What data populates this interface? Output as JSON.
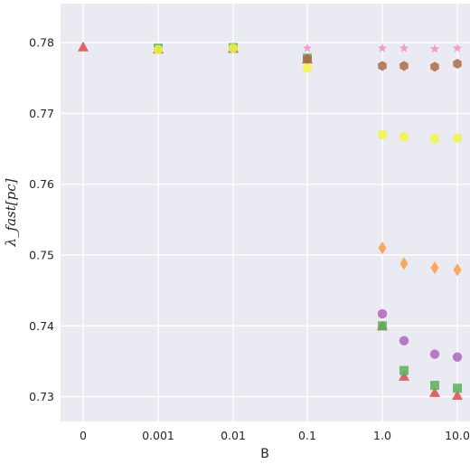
{
  "chart_data": {
    "type": "scatter",
    "title": "",
    "xlabel": "B",
    "ylabel": "λ_fast[pc]",
    "ylim": [
      0.7265,
      0.7855
    ],
    "grid": true,
    "x_scale": "categorical-log",
    "x_ticks": [
      "0",
      "0.001",
      "0.01",
      "0.1",
      "1.0",
      "10.0"
    ],
    "x": [
      "0",
      "0.001",
      "0.01",
      "0.1",
      "1.0",
      "2.0",
      "5.0",
      "10.0"
    ],
    "y_ticks": [
      "0.73",
      "0.74",
      "0.75",
      "0.76",
      "0.77",
      "0.78"
    ],
    "series": [
      {
        "marker": "triangle",
        "color": "#e24a4a",
        "values": [
          0.7794,
          0.7791,
          0.7792,
          0.7777,
          0.74,
          0.7329,
          0.7306,
          0.7302
        ]
      },
      {
        "marker": "square",
        "color": "#55b35a",
        "values": [
          null,
          0.7792,
          0.7793,
          0.7778,
          0.74,
          0.7337,
          0.7316,
          0.7312
        ]
      },
      {
        "marker": "circle",
        "color": "#b065bf",
        "values": [
          null,
          null,
          null,
          null,
          0.7417,
          0.7379,
          0.736,
          0.7356
        ]
      },
      {
        "marker": "diamond",
        "color": "#ff9a3c",
        "values": [
          null,
          null,
          null,
          null,
          0.751,
          0.7488,
          0.7482,
          0.7479
        ]
      },
      {
        "marker": "circle",
        "color": "#f5f542",
        "values": [
          null,
          0.779,
          0.7792,
          0.7764,
          0.767,
          0.7667,
          0.7664,
          0.7665
        ]
      },
      {
        "marker": "hexagon",
        "color": "#b06a45",
        "values": [
          null,
          null,
          null,
          0.7777,
          0.7767,
          0.7767,
          0.7766,
          0.777
        ]
      },
      {
        "marker": "star",
        "color": "#f58cc4",
        "values": [
          null,
          null,
          null,
          0.7792,
          0.7792,
          0.7792,
          0.7791,
          0.7792
        ]
      }
    ]
  }
}
